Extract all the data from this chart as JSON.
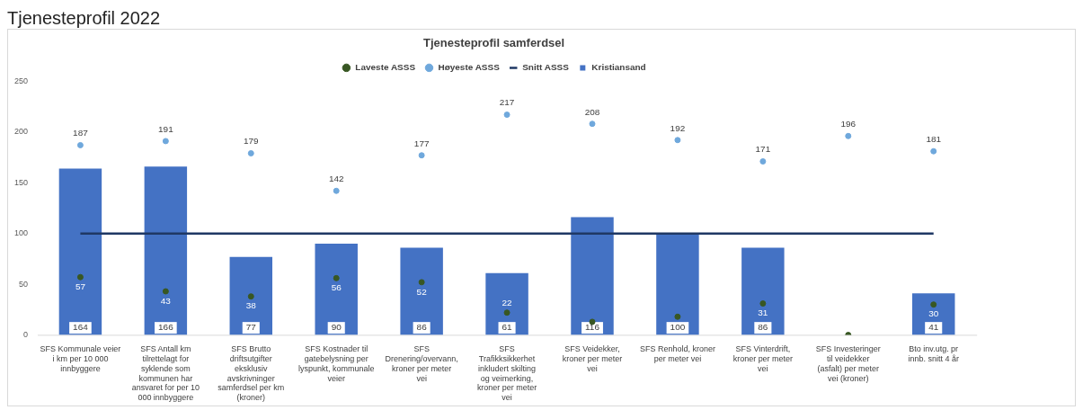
{
  "chart_data": {
    "type": "bar",
    "title": "Tjenesteprofil samferdsel",
    "annotations": [
      "Tjenesteprofil 2022"
    ],
    "categories": [
      "SFS Kommunale veier i km per 10 000 innbyggere",
      "SFS Antall km tilrettelagt for syklende som kommunen har ansvaret for per 10 000 innbyggere",
      "SFS Brutto driftsutgifter eksklusiv avskrivninger samferdsel per km (kroner)",
      "SFS Kostnader til gatebelysning per lyspunkt, kommunale veier",
      "SFS Drenering/overvann, kroner per meter vei",
      "SFS Trafikksikkerhet inkludert skilting og veimerking, kroner per meter vei",
      "SFS Veidekker, kroner per meter vei",
      "SFS Renhold, kroner per meter vei",
      "SFS Vinterdrift, kroner per meter vei",
      "SFS Investeringer til veidekker (asfalt) per meter vei (kroner)",
      "Bto inv.utg. pr innb. snitt 4 år"
    ],
    "series": [
      {
        "name": "Kristiansand",
        "color": "#4472c4",
        "values": [
          164,
          166,
          77,
          90,
          86,
          61,
          116,
          100,
          86,
          null,
          41
        ],
        "value_labels": [
          "164",
          "166",
          "77",
          "90",
          "86",
          "61",
          "116",
          "100",
          "86",
          null,
          "41"
        ]
      },
      {
        "name": "Snitt ASSS",
        "type": "line",
        "color": "#1f3864",
        "values": [
          100,
          100,
          100,
          100,
          100,
          100,
          100,
          100,
          100,
          100,
          100
        ]
      },
      {
        "name": "Laveste ASSS",
        "type": "scatter",
        "marker": "circle",
        "color": "#385723",
        "values": [
          57,
          43,
          38,
          56,
          52,
          22,
          13,
          18,
          31,
          0,
          30
        ],
        "value_labels": [
          "57",
          "43",
          "38",
          "56",
          "52",
          "22",
          null,
          null,
          "31",
          null,
          "30"
        ]
      },
      {
        "name": "Høyeste ASSS",
        "type": "scatter",
        "marker": "circle",
        "color": "#6fa8dc",
        "values": [
          187,
          191,
          179,
          142,
          177,
          217,
          208,
          192,
          171,
          196,
          181
        ],
        "value_labels": [
          "187",
          "191",
          "179",
          "142",
          "177",
          "217",
          "208",
          "192",
          "171",
          "196",
          "181"
        ]
      }
    ],
    "ylim": [
      0,
      250
    ],
    "yticks": [
      0,
      50,
      100,
      150,
      200,
      250
    ],
    "grid": false,
    "legend": "top"
  }
}
